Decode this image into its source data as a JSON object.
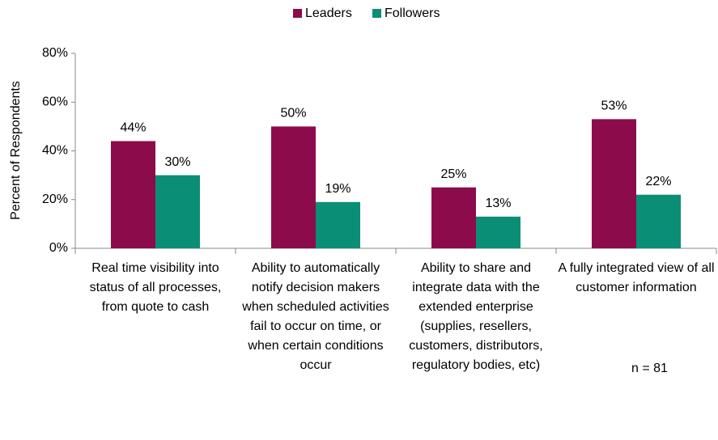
{
  "chart_data": {
    "type": "bar",
    "categories": [
      "Real time visibility into status of all processes, from quote to cash",
      "Ability to automatically notify decision makers when scheduled activities fail to occur on time, or when certain conditions occur",
      "Ability to share and integrate data with the extended enterprise (supplies, resellers, customers, distributors, regulatory bodies, etc)",
      "A fully integrated view of all customer information"
    ],
    "series": [
      {
        "name": "Leaders",
        "color": "#8c0b4b",
        "values": [
          44,
          50,
          25,
          53
        ],
        "value_labels": [
          "44%",
          "50%",
          "25%",
          "53%"
        ]
      },
      {
        "name": "Followers",
        "color": "#0b8e76",
        "values": [
          30,
          19,
          13,
          22
        ],
        "value_labels": [
          "30%",
          "19%",
          "13%",
          "22%"
        ]
      }
    ],
    "ylabel": "Percent of Respondents",
    "ylim": [
      0,
      80
    ],
    "yticks": [
      {
        "value": 0,
        "label": "0%"
      },
      {
        "value": 20,
        "label": "20%"
      },
      {
        "value": 40,
        "label": "40%"
      },
      {
        "value": 60,
        "label": "60%"
      },
      {
        "value": 80,
        "label": "80%"
      }
    ],
    "legend": "top",
    "annotations": [
      "n = 81"
    ]
  }
}
